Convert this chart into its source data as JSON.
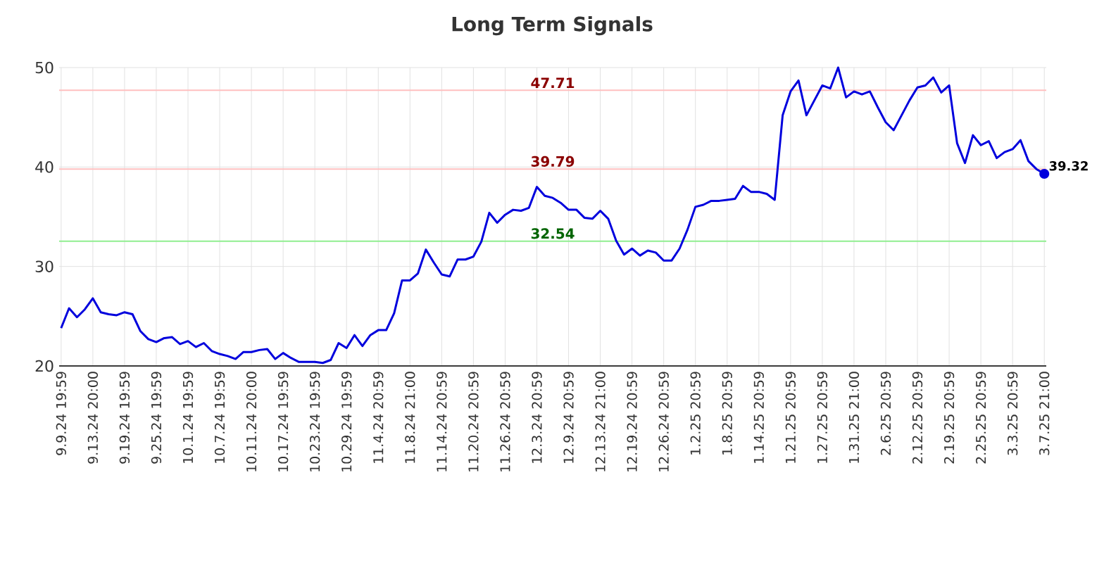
{
  "chart_data": {
    "type": "line",
    "title": "Long Term Signals",
    "categories": [
      "9.9.24 19:59",
      null,
      null,
      null,
      "9.13.24 20:00",
      null,
      null,
      null,
      "9.19.24 19:59",
      null,
      null,
      null,
      "9.25.24 19:59",
      null,
      null,
      null,
      "10.1.24 19:59",
      null,
      null,
      null,
      "10.7.24 19:59",
      null,
      null,
      null,
      "10.11.24 20:00",
      null,
      null,
      null,
      "10.17.24 19:59",
      null,
      null,
      null,
      "10.23.24 19:59",
      null,
      null,
      null,
      "10.29.24 19:59",
      null,
      null,
      null,
      "11.4.24 20:59",
      null,
      null,
      null,
      "11.8.24 21:00",
      null,
      null,
      null,
      "11.14.24 20:59",
      null,
      null,
      null,
      "11.20.24 20:59",
      null,
      null,
      null,
      "11.26.24 20:59",
      null,
      null,
      null,
      "12.3.24 20:59",
      null,
      null,
      null,
      "12.9.24 20:59",
      null,
      null,
      null,
      "12.13.24 21:00",
      null,
      null,
      null,
      "12.19.24 20:59",
      null,
      null,
      null,
      "12.26.24 20:59",
      null,
      null,
      null,
      "1.2.25 20:59",
      null,
      null,
      null,
      "1.8.25 20:59",
      null,
      null,
      null,
      "1.14.25 20:59",
      null,
      null,
      null,
      "1.21.25 20:59",
      null,
      null,
      null,
      "1.27.25 20:59",
      null,
      null,
      null,
      "1.31.25 21:00",
      null,
      null,
      null,
      "2.6.25 20:59",
      null,
      null,
      null,
      "2.12.25 20:59",
      null,
      null,
      null,
      "2.19.25 20:59",
      null,
      null,
      null,
      "2.25.25 20:59",
      null,
      null,
      null,
      "3.3.25 20:59",
      null,
      null,
      null,
      "3.7.25 21:00"
    ],
    "series": [
      {
        "color": "#0000dd",
        "values": [
          23.8,
          25.8,
          24.9,
          25.7,
          26.8,
          25.4,
          25.2,
          25.1,
          25.4,
          25.2,
          23.5,
          22.7,
          22.4,
          22.8,
          22.9,
          22.2,
          22.5,
          21.9,
          22.3,
          21.5,
          21.2,
          21.0,
          20.7,
          21.4,
          21.4,
          21.6,
          21.7,
          20.7,
          21.3,
          20.8,
          20.4,
          20.4,
          20.4,
          20.3,
          20.6,
          22.3,
          21.8,
          23.1,
          22.0,
          23.1,
          23.6,
          23.6,
          25.3,
          28.6,
          28.6,
          29.3,
          31.7,
          30.4,
          29.2,
          29.0,
          30.7,
          30.7,
          31.0,
          32.5,
          35.4,
          34.4,
          35.2,
          35.7,
          35.6,
          35.9,
          38.0,
          37.1,
          36.9,
          36.4,
          35.7,
          35.7,
          34.9,
          34.8,
          35.6,
          34.8,
          32.6,
          31.2,
          31.8,
          31.1,
          31.6,
          31.4,
          30.6,
          30.6,
          31.8,
          33.7,
          36.0,
          36.2,
          36.6,
          36.6,
          36.7,
          36.8,
          38.1,
          37.5,
          37.5,
          37.3,
          36.7,
          45.2,
          47.6,
          48.7,
          45.2,
          46.7,
          48.2,
          47.9,
          50.0,
          47.0,
          47.6,
          47.3,
          47.6,
          46.0,
          44.5,
          43.7,
          45.2,
          46.7,
          48.0,
          48.2,
          49.0,
          47.5,
          48.2,
          42.4,
          40.4,
          43.2,
          42.2,
          42.6,
          40.9,
          41.5,
          41.8,
          42.7,
          40.6,
          39.8,
          39.32
        ]
      }
    ],
    "ylim": [
      20,
      50
    ],
    "yticks": [
      20,
      30,
      40,
      50
    ],
    "grid": true,
    "marker": "none",
    "line_style": "solid",
    "ref_lines": [
      {
        "axis": "y",
        "value": 47.71,
        "label": "47.71",
        "color": "#ffc0c0"
      },
      {
        "axis": "y",
        "value": 39.79,
        "label": "39.79",
        "color": "#ffc0c0"
      },
      {
        "axis": "y",
        "value": 32.54,
        "label": "32.54",
        "color": "#90ee90"
      }
    ],
    "annotations": [
      {
        "text": "39.32",
        "x": "3.7.25 21:00",
        "y": 39.32
      }
    ]
  }
}
